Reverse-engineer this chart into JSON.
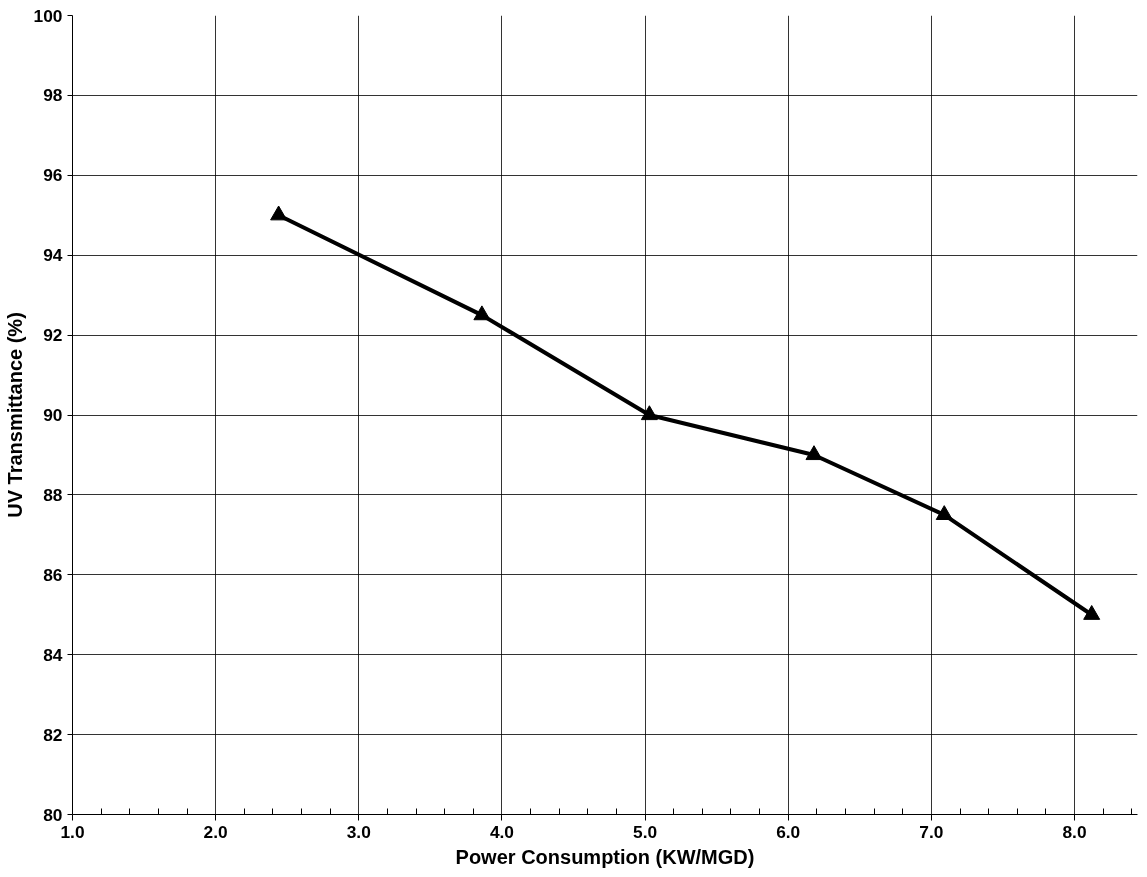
{
  "chart_data": {
    "type": "line",
    "xlabel": "Power Consumption (KW/MGD)",
    "ylabel": "UV Transmittance (%)",
    "x": [
      2.44,
      3.86,
      5.03,
      6.18,
      7.09,
      8.12
    ],
    "series": [
      {
        "color": "#000000",
        "values": [
          95,
          92.5,
          90,
          89,
          87.5,
          85
        ]
      }
    ],
    "xlim": [
      1.0,
      8.44
    ],
    "ylim": [
      80,
      100
    ],
    "xticks": [
      {
        "value": 1,
        "label": "1.0"
      },
      {
        "value": 2,
        "label": "2.0"
      },
      {
        "value": 3,
        "label": "3.0"
      },
      {
        "value": 4,
        "label": "4.0"
      },
      {
        "value": 5,
        "label": "5.0"
      },
      {
        "value": 6,
        "label": "6.0"
      },
      {
        "value": 7,
        "label": "7.0"
      },
      {
        "value": 8,
        "label": "8.0"
      }
    ],
    "yticks": [
      80,
      82,
      84,
      86,
      88,
      90,
      92,
      94,
      96,
      98,
      100
    ],
    "grid": true,
    "marker": "triangle",
    "line_style": "solid"
  }
}
